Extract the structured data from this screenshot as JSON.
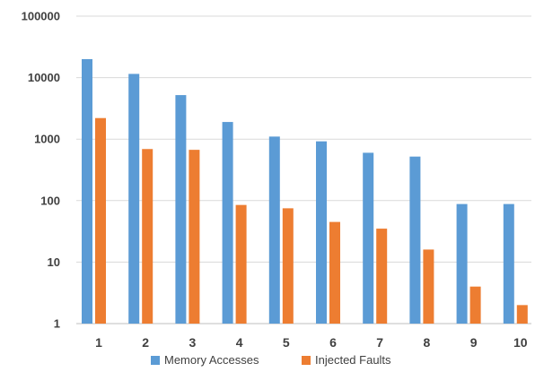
{
  "chart_data": {
    "type": "bar",
    "scale": "log",
    "categories": [
      "1",
      "2",
      "3",
      "4",
      "5",
      "6",
      "7",
      "8",
      "9",
      "10"
    ],
    "series": [
      {
        "name": "Memory Accesses",
        "color": "#5B9BD5",
        "values": [
          20000,
          11500,
          5200,
          1900,
          1100,
          920,
          600,
          520,
          88,
          88
        ]
      },
      {
        "name": "Injected Faults",
        "color": "#ED7D31",
        "values": [
          2200,
          690,
          670,
          85,
          75,
          45,
          35,
          16,
          4,
          2
        ]
      }
    ],
    "yticks": [
      "1",
      "10",
      "100",
      "1000",
      "10000",
      "100000"
    ],
    "ylim": [
      1,
      100000
    ],
    "grid": true,
    "legend_position": "bottom"
  }
}
